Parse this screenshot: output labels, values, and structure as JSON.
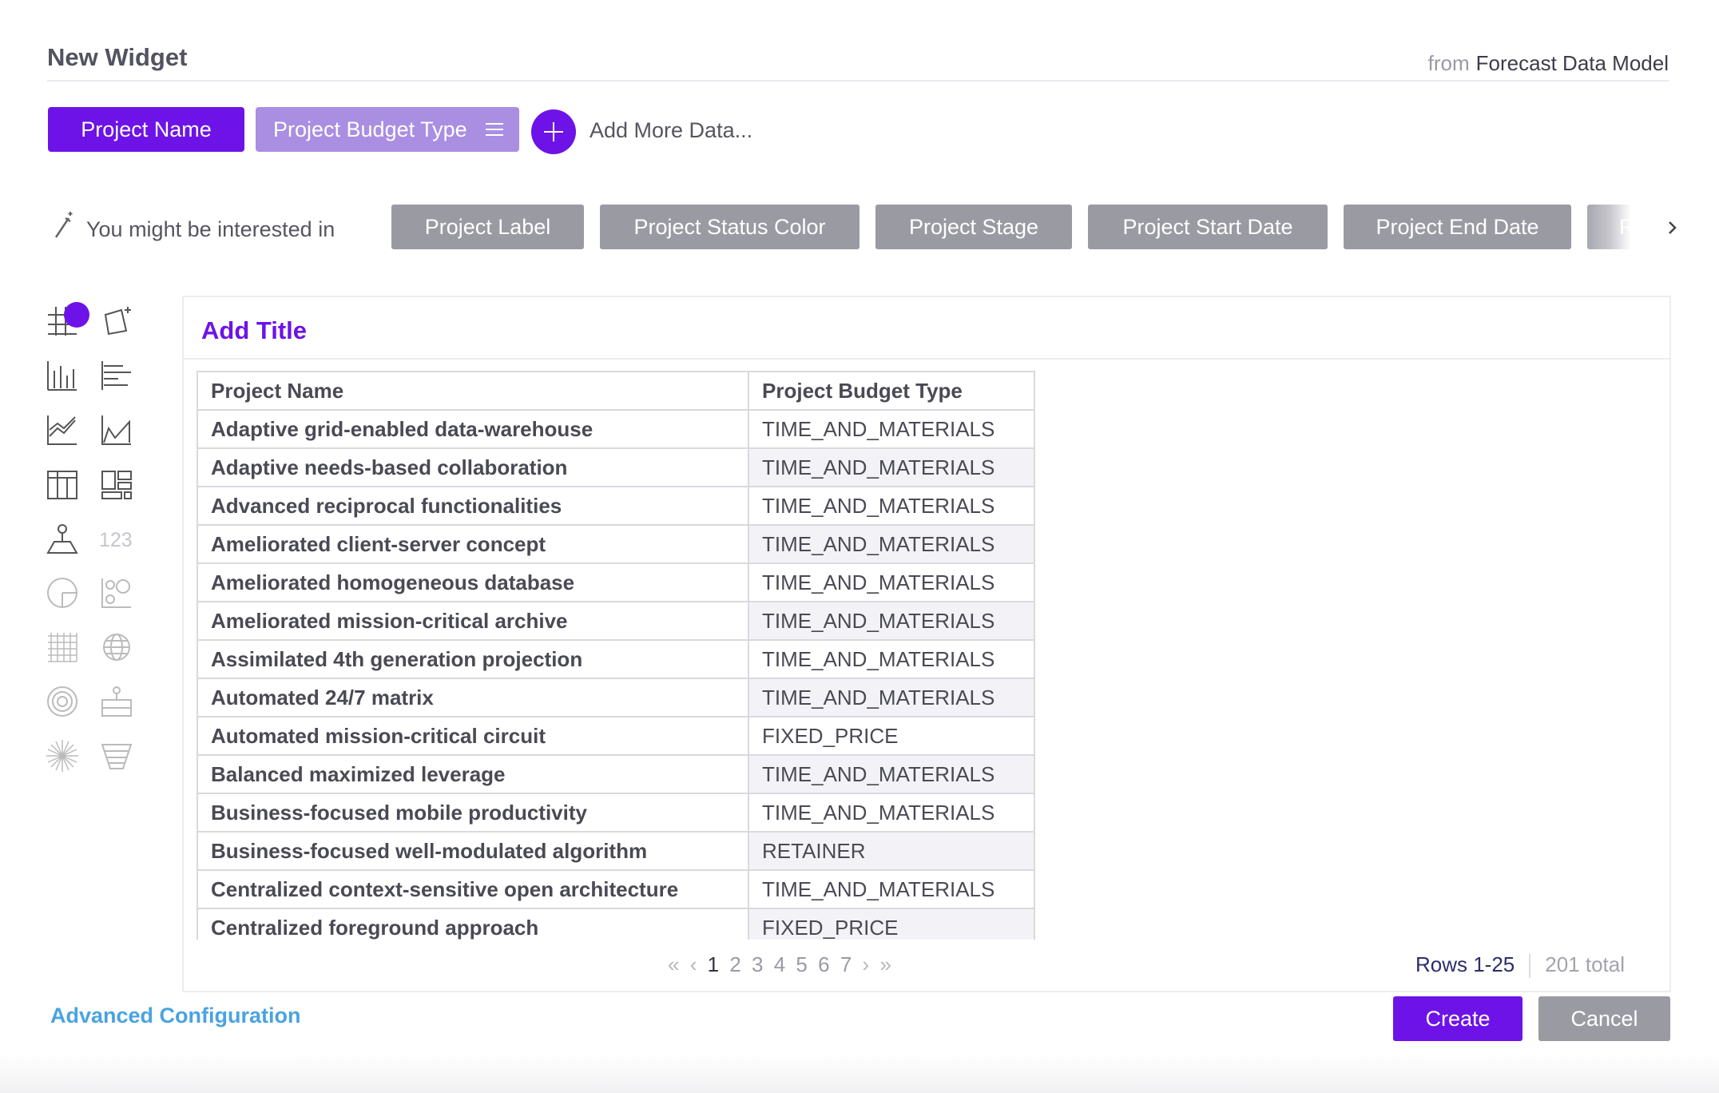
{
  "header": {
    "title": "New Widget",
    "source_prefix": "from",
    "source_model": "Forecast Data Model"
  },
  "data_chips": [
    {
      "label": "Project Name",
      "color": "#6d13e8"
    },
    {
      "label": "Project Budget Type",
      "color": "#a98ee2"
    }
  ],
  "add_more_label": "Add More Data...",
  "suggestions": {
    "intro": "You might be interested in",
    "items": [
      "Project Label",
      "Project Status Color",
      "Project Stage",
      "Project Start Date",
      "Project End Date",
      "Ra"
    ]
  },
  "icons": [
    "table-grid-icon",
    "magic-chart-icon",
    "bar-chart-icon",
    "horizontal-bar-chart-icon",
    "line-chart-icon",
    "area-chart-icon",
    "pivot-table-icon",
    "dashboard-layout-icon",
    "map-pin-icon",
    "number-icon",
    "pie-chart-icon",
    "bubble-chart-icon",
    "heatmap-icon",
    "globe-icon",
    "radial-icon",
    "gauge-icon",
    "burst-icon",
    "funnel-icon"
  ],
  "number_icon_label": "123",
  "panel": {
    "title": "Add Title",
    "columns": [
      "Project Name",
      "Project Budget Type"
    ],
    "rows": [
      [
        "Adaptive grid-enabled data-warehouse",
        "TIME_AND_MATERIALS"
      ],
      [
        "Adaptive needs-based collaboration",
        "TIME_AND_MATERIALS"
      ],
      [
        "Advanced reciprocal functionalities",
        "TIME_AND_MATERIALS"
      ],
      [
        "Ameliorated client-server concept",
        "TIME_AND_MATERIALS"
      ],
      [
        "Ameliorated homogeneous database",
        "TIME_AND_MATERIALS"
      ],
      [
        "Ameliorated mission-critical archive",
        "TIME_AND_MATERIALS"
      ],
      [
        "Assimilated 4th generation projection",
        "TIME_AND_MATERIALS"
      ],
      [
        "Automated 24/7 matrix",
        "TIME_AND_MATERIALS"
      ],
      [
        "Automated mission-critical circuit",
        "FIXED_PRICE"
      ],
      [
        "Balanced maximized leverage",
        "TIME_AND_MATERIALS"
      ],
      [
        "Business-focused mobile productivity",
        "TIME_AND_MATERIALS"
      ],
      [
        "Business-focused well-modulated algorithm",
        "RETAINER"
      ],
      [
        "Centralized context-sensitive open architecture",
        "TIME_AND_MATERIALS"
      ],
      [
        "Centralized foreground approach",
        "FIXED_PRICE"
      ]
    ],
    "pagination": {
      "first": "«",
      "prev": "‹",
      "pages": [
        "1",
        "2",
        "3",
        "4",
        "5",
        "6",
        "7"
      ],
      "active_page": "1",
      "next": "›",
      "last": "»"
    },
    "rows_range": "Rows 1-25",
    "rows_total": "201 total"
  },
  "footer": {
    "advanced": "Advanced Configuration",
    "create": "Create",
    "cancel": "Cancel"
  },
  "colors": {
    "accent": "#6d13e8",
    "secondary_chip": "#a98ee2",
    "neutral_button": "#9a9aa3",
    "link": "#4aa3e0"
  }
}
